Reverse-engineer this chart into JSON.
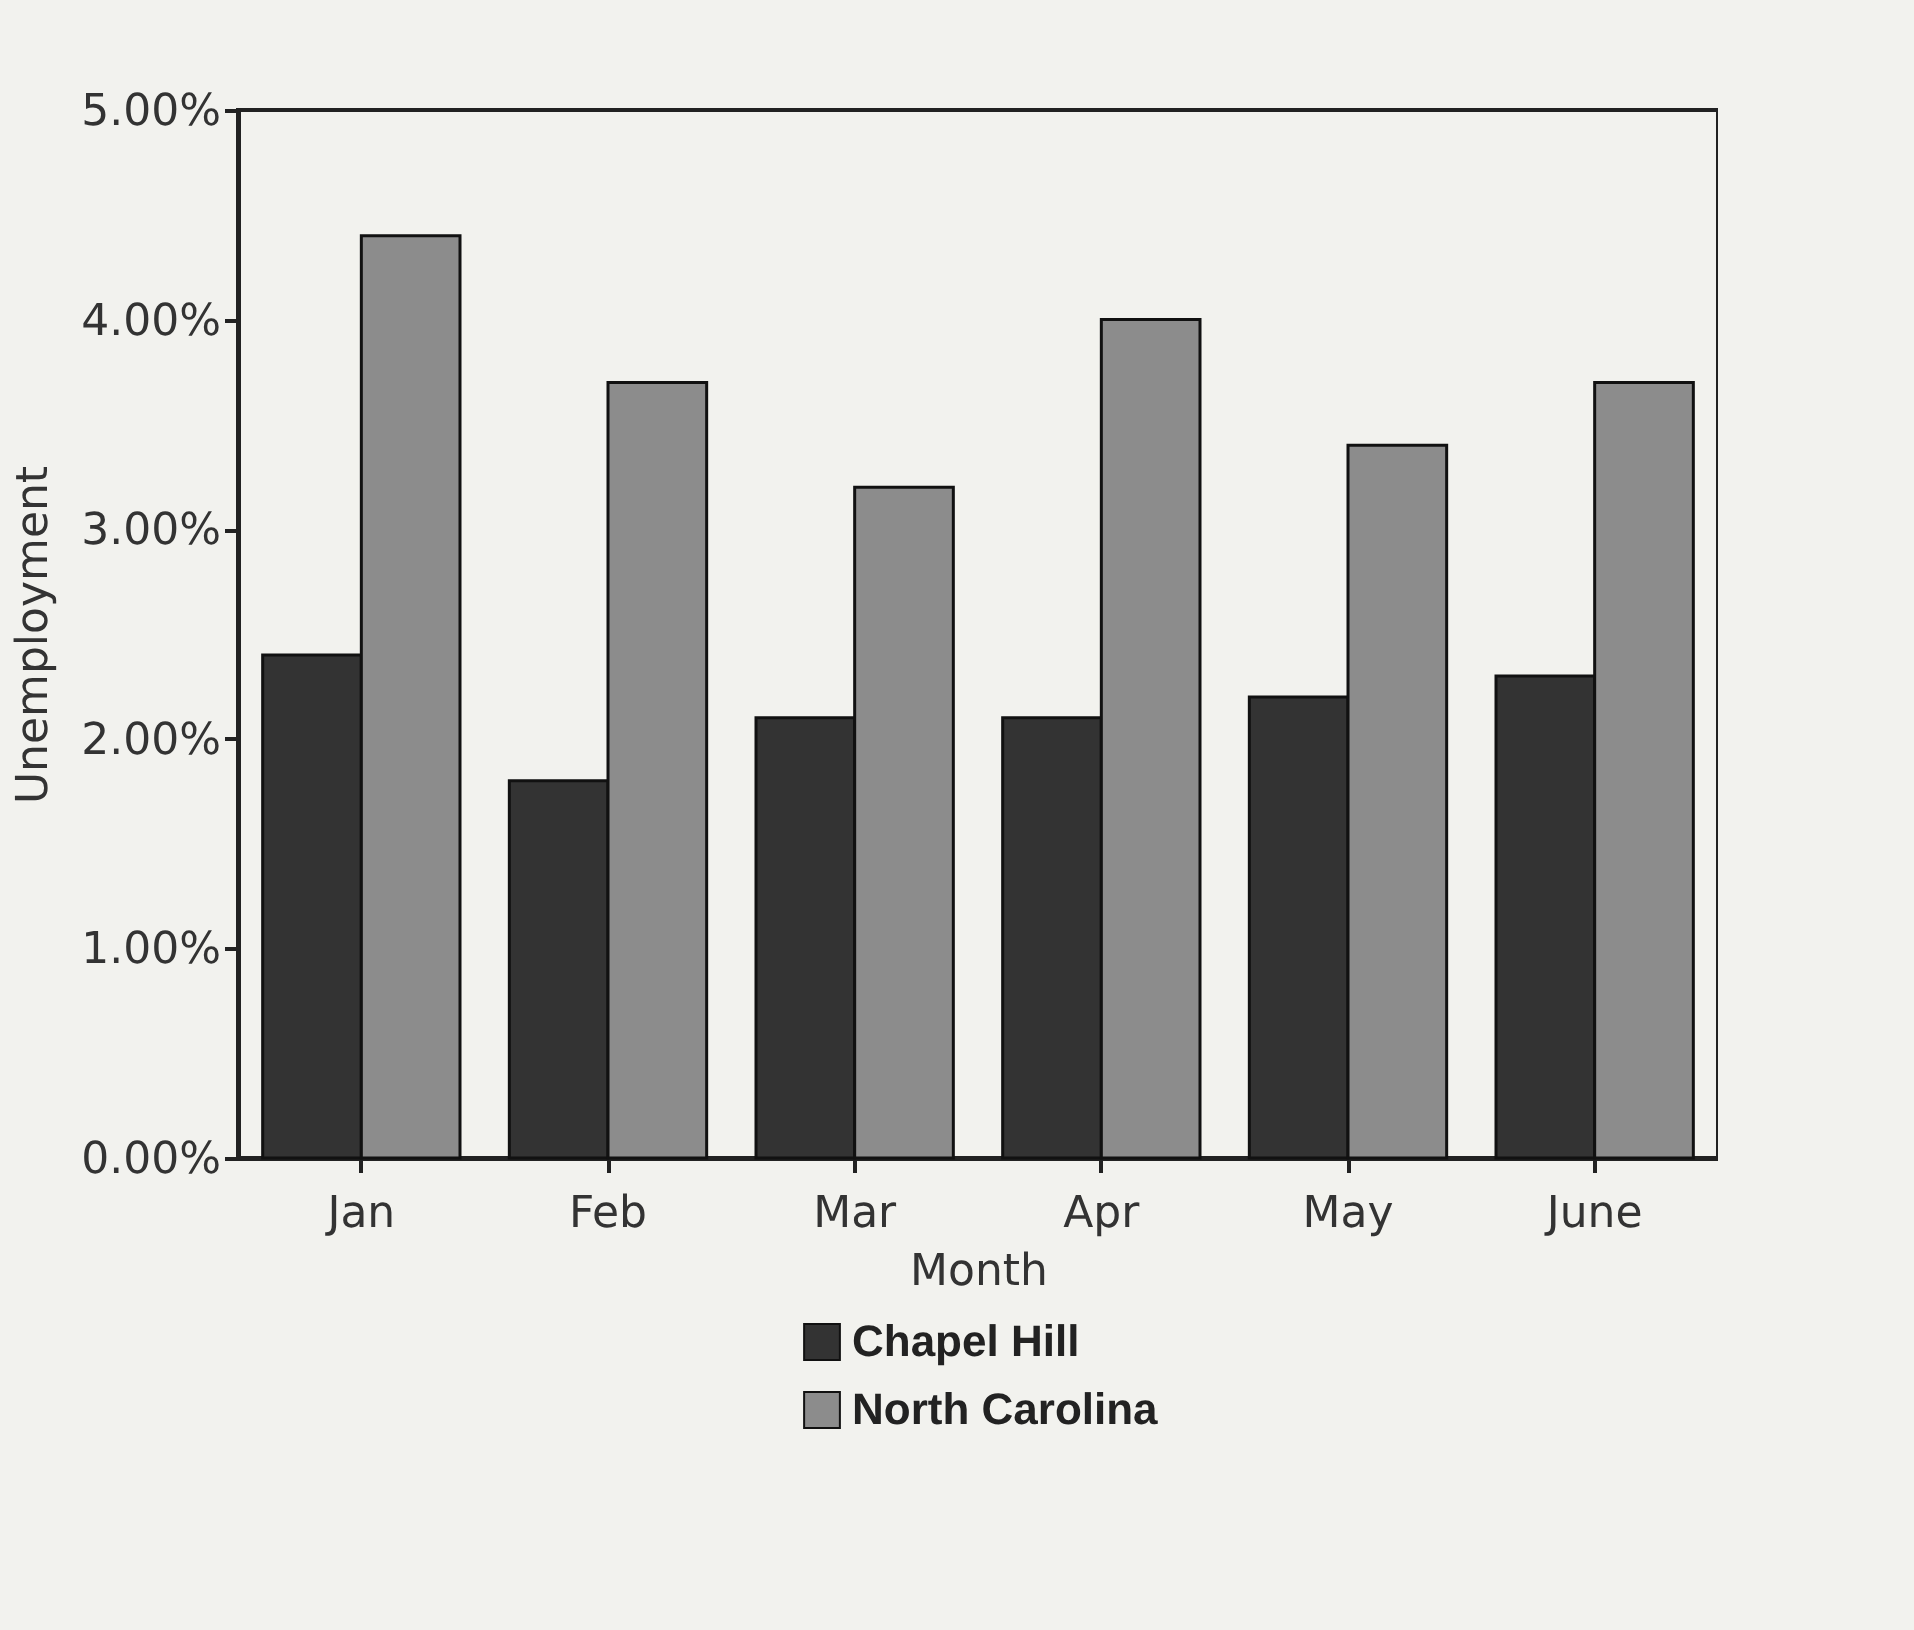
{
  "chart_data": {
    "type": "bar",
    "xlabel": "Month",
    "ylabel": "Unemployment",
    "categories": [
      "Jan",
      "Feb",
      "Mar",
      "Apr",
      "May",
      "June"
    ],
    "series": [
      {
        "name": "Chapel Hill",
        "color": "#333333",
        "values": [
          2.4,
          1.8,
          2.1,
          2.1,
          2.2,
          2.3
        ]
      },
      {
        "name": "North Carolina",
        "color": "#8c8c8c",
        "values": [
          4.4,
          3.7,
          3.2,
          4.0,
          3.4,
          3.7
        ]
      }
    ],
    "ylim": [
      0,
      5
    ],
    "yticks": [
      {
        "value": 0,
        "label": "0.00%"
      },
      {
        "value": 1,
        "label": "1.00%"
      },
      {
        "value": 2,
        "label": "2.00%"
      },
      {
        "value": 3,
        "label": "3.00%"
      },
      {
        "value": 4,
        "label": "4.00%"
      },
      {
        "value": 5,
        "label": "5.00%"
      }
    ],
    "grid": false,
    "legend": "bottom"
  }
}
